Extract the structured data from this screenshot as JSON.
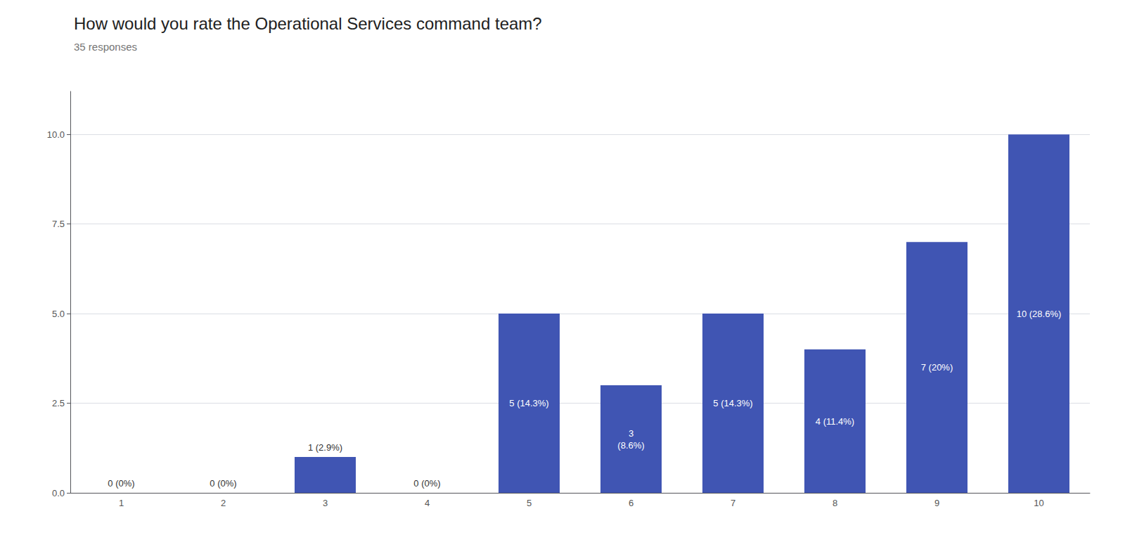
{
  "chart_data": {
    "type": "bar",
    "title": "How would you rate the Operational Services command team?",
    "subtitle": "35 responses",
    "categories": [
      1,
      2,
      3,
      4,
      5,
      6,
      7,
      8,
      9,
      10
    ],
    "values": [
      0,
      0,
      1,
      0,
      5,
      3,
      5,
      4,
      7,
      10
    ],
    "value_labels": [
      "0 (0%)",
      "0 (0%)",
      "1 (2.9%)",
      "0 (0%)",
      "5 (14.3%)",
      "3\n(8.6%)",
      "5 (14.3%)",
      "4 (11.4%)",
      "7 (20%)",
      "10 (28.6%)"
    ],
    "data_labels": true,
    "color": "#4055b3",
    "ylim": [
      0,
      11.2
    ],
    "yticks": [
      {
        "value": 0,
        "label": "0.0"
      },
      2.5,
      {
        "value": 5,
        "label": "5.0"
      },
      7.5,
      {
        "value": 10,
        "label": "10.0"
      }
    ],
    "grid": true
  }
}
